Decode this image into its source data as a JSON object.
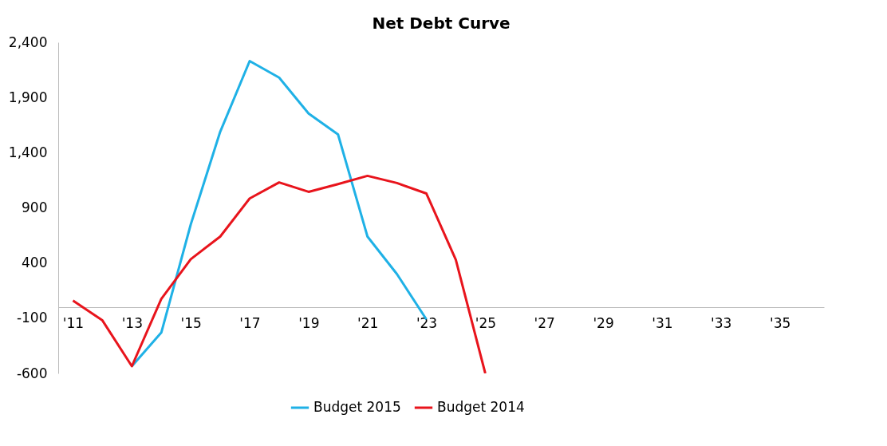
{
  "chart_data": {
    "type": "line",
    "title": "Net Debt Curve",
    "categories": [
      "'11",
      null,
      "'13",
      null,
      "'15",
      null,
      "'17",
      null,
      "'19",
      null,
      "'21",
      null,
      "'23",
      null,
      "'25",
      null,
      "'27",
      null,
      "'29",
      null,
      "'31",
      null,
      "'33",
      null,
      "'35",
      null
    ],
    "series": [
      {
        "name": "Budget 2015",
        "color": "#1fb1e6",
        "values": [
          null,
          null,
          -535,
          -230,
          750,
          1590,
          2230,
          2080,
          1755,
          1565,
          640,
          300,
          -110,
          null,
          null,
          null,
          null,
          null,
          null,
          null,
          null,
          null,
          null,
          null,
          null,
          null
        ]
      },
      {
        "name": "Budget 2014",
        "color": "#e8141c",
        "values": [
          60,
          -120,
          -535,
          75,
          435,
          640,
          985,
          1130,
          1045,
          1115,
          1190,
          1125,
          1030,
          430,
          -600,
          null,
          null,
          null,
          null,
          null,
          null,
          null,
          null,
          null,
          null,
          null
        ]
      }
    ],
    "ylim": [
      -600,
      2400
    ],
    "yticks": [
      {
        "value": -600,
        "label": "-600"
      },
      {
        "value": -100,
        "label": "-100"
      },
      {
        "value": 400,
        "label": "400"
      },
      {
        "value": 900,
        "label": "900"
      },
      {
        "value": 1400,
        "label": "1,400"
      },
      {
        "value": 1900,
        "label": "1,900"
      },
      {
        "value": 2400,
        "label": "2,400"
      }
    ],
    "grid": false,
    "legend": "bottom",
    "marker": "none",
    "line_style": "solid"
  }
}
